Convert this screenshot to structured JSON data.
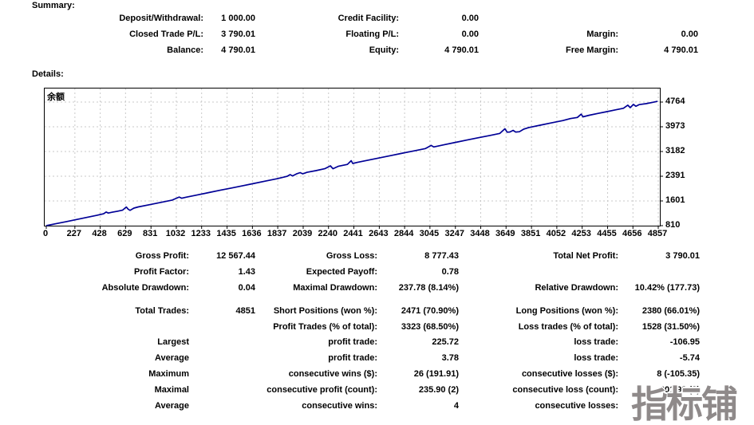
{
  "page": {
    "summary_label": "Summary:",
    "details_label": "Details:"
  },
  "summary": {
    "rows": [
      [
        "Deposit/Withdrawal:",
        "1 000.00",
        "Credit Facility:",
        "0.00",
        "",
        ""
      ],
      [
        "Closed Trade P/L:",
        "3 790.01",
        "Floating P/L:",
        "0.00",
        "Margin:",
        "0.00"
      ],
      [
        "Balance:",
        "4 790.01",
        "Equity:",
        "4 790.01",
        "Free Margin:",
        "4 790.01"
      ]
    ]
  },
  "stats": {
    "blocks": [
      {
        "rows": [
          [
            "Gross Profit:",
            "12 567.44",
            "Gross Loss:",
            "8 777.43",
            "Total Net Profit:",
            "3 790.01"
          ],
          [
            "Profit Factor:",
            "1.43",
            "Expected Payoff:",
            "0.78",
            "",
            ""
          ],
          [
            "Absolute Drawdown:",
            "0.04",
            "Maximal Drawdown:",
            "237.78 (8.14%)",
            "Relative Drawdown:",
            "10.42% (177.73)"
          ]
        ]
      },
      {
        "rows": [
          [
            "Total Trades:",
            "4851",
            "Short Positions (won %):",
            "2471 (70.90%)",
            "Long Positions (won %):",
            "2380 (66.01%)"
          ],
          [
            "",
            "",
            "Profit Trades (% of total):",
            "3323 (68.50%)",
            "Loss trades (% of total):",
            "1528 (31.50%)"
          ]
        ]
      },
      {
        "rows": [
          [
            "Largest",
            "",
            "profit trade:",
            "225.72",
            "loss trade:",
            "-106.95"
          ],
          [
            "Average",
            "",
            "profit trade:",
            "3.78",
            "loss trade:",
            "-5.74"
          ],
          [
            "Maximum",
            "",
            "consecutive wins ($):",
            "26 (191.91)",
            "consecutive losses ($):",
            "8 (-105.35)"
          ],
          [
            "Maximal",
            "",
            "consecutive profit (count):",
            "235.90 (2)",
            "consecutive loss (count):",
            "-201.99 (3)"
          ],
          [
            "Average",
            "",
            "consecutive wins:",
            "4",
            "consecutive losses:",
            ""
          ]
        ]
      }
    ]
  },
  "chart_data": {
    "type": "line",
    "title": "",
    "xlabel": "",
    "ylabel": "",
    "legend_label": "余额",
    "legend_position": "top-left",
    "grid": true,
    "line_color": "#000096",
    "grid_color": "#c9c9c9",
    "x_ticks": [
      0,
      227,
      428,
      629,
      831,
      1032,
      1233,
      1435,
      1636,
      1837,
      2039,
      2240,
      2441,
      2643,
      2844,
      3045,
      3247,
      3448,
      3649,
      3851,
      4052,
      4253,
      4455,
      4656,
      4857
    ],
    "y_ticks": [
      4764,
      3973,
      3182,
      2391,
      1601,
      810
    ],
    "xlim": [
      0,
      4880
    ],
    "ylim": [
      810,
      4790
    ],
    "series": [
      {
        "name": "余额",
        "points": [
          [
            0,
            810
          ],
          [
            80,
            876
          ],
          [
            160,
            941
          ],
          [
            240,
            1007
          ],
          [
            320,
            1072
          ],
          [
            400,
            1138
          ],
          [
            455,
            1191
          ],
          [
            475,
            1245
          ],
          [
            492,
            1213
          ],
          [
            525,
            1241
          ],
          [
            565,
            1273
          ],
          [
            605,
            1306
          ],
          [
            635,
            1406
          ],
          [
            650,
            1338
          ],
          [
            665,
            1300
          ],
          [
            695,
            1370
          ],
          [
            730,
            1409
          ],
          [
            820,
            1482
          ],
          [
            910,
            1556
          ],
          [
            1000,
            1630
          ],
          [
            1055,
            1725
          ],
          [
            1075,
            1687
          ],
          [
            1110,
            1720
          ],
          [
            1200,
            1794
          ],
          [
            1290,
            1868
          ],
          [
            1380,
            1942
          ],
          [
            1470,
            2015
          ],
          [
            1560,
            2089
          ],
          [
            1650,
            2163
          ],
          [
            1740,
            2237
          ],
          [
            1830,
            2311
          ],
          [
            1910,
            2386
          ],
          [
            1935,
            2442
          ],
          [
            1955,
            2403
          ],
          [
            1990,
            2472
          ],
          [
            2015,
            2507
          ],
          [
            2035,
            2469
          ],
          [
            2070,
            2517
          ],
          [
            2140,
            2570
          ],
          [
            2210,
            2632
          ],
          [
            2255,
            2724
          ],
          [
            2275,
            2631
          ],
          [
            2320,
            2712
          ],
          [
            2390,
            2770
          ],
          [
            2420,
            2889
          ],
          [
            2432,
            2799
          ],
          [
            2470,
            2835
          ],
          [
            2560,
            2909
          ],
          [
            2650,
            2983
          ],
          [
            2740,
            3057
          ],
          [
            2830,
            3131
          ],
          [
            2920,
            3204
          ],
          [
            3010,
            3278
          ],
          [
            3055,
            3375
          ],
          [
            3075,
            3327
          ],
          [
            3160,
            3401
          ],
          [
            3250,
            3475
          ],
          [
            3340,
            3549
          ],
          [
            3430,
            3623
          ],
          [
            3520,
            3696
          ],
          [
            3600,
            3762
          ],
          [
            3640,
            3910
          ],
          [
            3658,
            3800
          ],
          [
            3680,
            3808
          ],
          [
            3705,
            3858
          ],
          [
            3725,
            3805
          ],
          [
            3755,
            3814
          ],
          [
            3790,
            3898
          ],
          [
            3830,
            3951
          ],
          [
            3920,
            4024
          ],
          [
            4010,
            4098
          ],
          [
            4100,
            4172
          ],
          [
            4160,
            4236
          ],
          [
            4215,
            4271
          ],
          [
            4245,
            4376
          ],
          [
            4260,
            4293
          ],
          [
            4310,
            4344
          ],
          [
            4380,
            4402
          ],
          [
            4450,
            4459
          ],
          [
            4520,
            4516
          ],
          [
            4580,
            4566
          ],
          [
            4615,
            4664
          ],
          [
            4635,
            4586
          ],
          [
            4660,
            4691
          ],
          [
            4680,
            4628
          ],
          [
            4705,
            4683
          ],
          [
            4760,
            4713
          ],
          [
            4810,
            4754
          ],
          [
            4851,
            4788
          ]
        ]
      }
    ]
  },
  "watermark": {
    "text": "指标铺",
    "color": "#8f8a8a"
  }
}
